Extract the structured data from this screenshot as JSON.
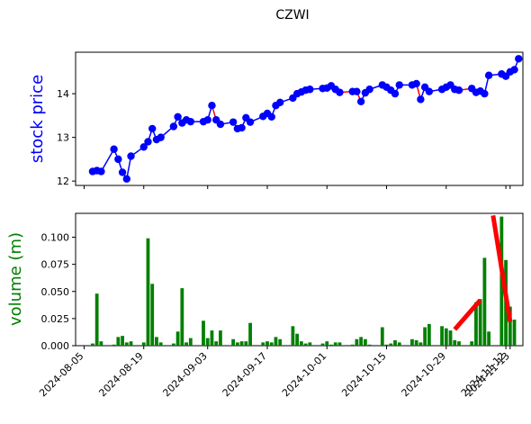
{
  "chart_data": [
    {
      "type": "line",
      "title": "CZWI",
      "xlabel": "",
      "ylabel": "stock price",
      "ylim": [
        11.9,
        14.95
      ],
      "yticks": [
        12,
        13,
        14
      ],
      "grid": false,
      "colors": {
        "line": "#0000ff",
        "marker": "#0000ff",
        "ylabel": "#0000ff",
        "decline": "#ff0000"
      },
      "x": [
        "2024-08-07",
        "2024-08-08",
        "2024-08-09",
        "2024-08-10",
        "2024-08-11",
        "2024-08-12",
        "2024-08-13",
        "2024-08-14",
        "2024-08-15",
        "2024-08-16",
        "2024-08-17",
        "2024-08-18",
        "2024-08-19",
        "2024-08-20",
        "2024-08-21",
        "2024-08-22",
        "2024-08-23",
        "2024-08-24",
        "2024-08-25",
        "2024-08-26",
        "2024-08-27",
        "2024-08-28",
        "2024-08-29",
        "2024-08-30",
        "2024-08-31",
        "2024-09-01",
        "2024-09-02",
        "2024-09-03",
        "2024-09-04",
        "2024-09-05",
        "2024-09-06",
        "2024-09-07",
        "2024-09-08",
        "2024-09-09",
        "2024-09-10",
        "2024-09-11",
        "2024-09-12",
        "2024-09-13",
        "2024-09-14",
        "2024-09-15",
        "2024-09-16",
        "2024-09-17",
        "2024-09-18",
        "2024-09-19",
        "2024-09-20",
        "2024-09-21",
        "2024-09-22",
        "2024-09-23",
        "2024-09-24",
        "2024-09-25",
        "2024-09-26",
        "2024-09-27",
        "2024-09-28",
        "2024-09-29",
        "2024-09-30",
        "2024-10-01",
        "2024-10-02",
        "2024-10-03",
        "2024-10-04",
        "2024-10-05",
        "2024-10-06",
        "2024-10-07",
        "2024-10-08",
        "2024-10-09",
        "2024-10-10",
        "2024-10-11",
        "2024-10-12",
        "2024-10-13",
        "2024-10-14",
        "2024-10-15",
        "2024-10-16",
        "2024-10-17",
        "2024-10-18",
        "2024-10-19",
        "2024-10-20",
        "2024-10-21",
        "2024-10-22",
        "2024-10-23",
        "2024-10-24",
        "2024-10-25",
        "2024-10-26",
        "2024-10-27",
        "2024-10-28",
        "2024-10-29",
        "2024-10-30",
        "2024-10-31",
        "2024-11-01",
        "2024-11-02",
        "2024-11-03",
        "2024-11-04",
        "2024-11-05",
        "2024-11-06",
        "2024-11-07",
        "2024-11-08",
        "2024-11-09",
        "2024-11-10",
        "2024-11-11",
        "2024-11-12",
        "2024-11-13",
        "2024-11-14"
      ],
      "price": [
        12.22,
        12.24,
        12.22,
        12.73,
        12.5,
        12.2,
        12.05,
        12.57,
        12.78,
        12.9,
        13.2,
        12.95,
        13.0,
        13.25,
        13.47,
        13.33,
        13.4,
        13.36,
        13.36,
        13.4,
        13.73,
        13.4,
        13.3,
        13.35,
        13.2,
        13.22,
        13.45,
        13.35,
        13.48,
        13.55,
        13.47,
        13.73,
        13.8,
        13.9,
        14.0,
        14.04,
        14.08,
        14.1,
        14.12,
        14.13,
        14.18,
        14.1,
        14.03,
        14.05,
        14.05,
        13.82,
        14.02,
        14.1,
        14.2,
        14.15,
        14.08,
        14.0,
        14.2,
        14.2,
        14.23,
        13.87,
        14.15,
        14.05,
        14.1,
        14.15,
        14.2,
        14.1,
        14.08,
        14.12,
        14.03,
        14.06,
        14.0,
        14.42,
        14.45,
        14.4,
        14.5,
        14.55,
        14.8
      ],
      "price_dates_index": [
        0,
        1,
        2,
        3,
        4,
        5,
        6,
        7,
        8,
        9,
        10,
        11,
        12,
        13,
        14,
        15,
        16,
        17,
        18,
        19,
        20,
        21,
        22,
        23,
        24,
        25,
        26,
        27,
        28,
        29,
        30,
        31,
        32,
        33,
        34,
        35,
        36,
        37,
        38,
        39,
        40,
        41,
        42,
        43,
        44,
        45,
        46,
        47,
        48,
        49,
        50,
        51,
        52,
        53,
        54,
        55,
        56,
        57,
        58,
        59,
        60,
        61,
        62,
        63,
        64,
        65,
        66,
        67,
        68,
        69,
        70,
        71,
        72
      ],
      "decline_segments": [
        [
          14,
          15
        ],
        [
          20,
          21
        ],
        [
          24,
          25
        ],
        [
          40,
          45
        ],
        [
          54,
          55
        ],
        [
          59,
          66
        ]
      ]
    },
    {
      "type": "bar",
      "xlabel": "",
      "ylabel": "volume (m)",
      "ylim": [
        0,
        0.122
      ],
      "yticks": [
        "0.000",
        "0.025",
        "0.050",
        "0.075",
        "0.100"
      ],
      "xticks": [
        "2024-08-05",
        "2024-08-19",
        "2024-09-03",
        "2024-09-17",
        "2024-10-01",
        "2024-10-15",
        "2024-10-29",
        "2024-11-12",
        "2024-11-13"
      ],
      "grid": false,
      "colors": {
        "bar": "#008000",
        "ylabel": "#008000",
        "trend": "#ff0000"
      },
      "values": [
        0.002,
        0.048,
        0.004,
        0.001,
        0.008,
        0.009,
        0.003,
        0.004,
        0.003,
        0.099,
        0.057,
        0.008,
        0.003,
        0.002,
        0.013,
        0.053,
        0.003,
        0.007,
        0.023,
        0.007,
        0.014,
        0.004,
        0.014,
        0.006,
        0.003,
        0.004,
        0.004,
        0.021,
        0.003,
        0.004,
        0.003,
        0.008,
        0.006,
        0.018,
        0.011,
        0.004,
        0.002,
        0.003,
        0.002,
        0.004,
        0.001,
        0.003,
        0.003,
        0.001,
        0.006,
        0.008,
        0.006,
        0.001,
        0.017,
        0.001,
        0.002,
        0.005,
        0.003,
        0.006,
        0.005,
        0.003,
        0.017,
        0.02,
        0.018,
        0.016,
        0.014,
        0.005,
        0.004,
        0.004,
        0.04,
        0.043,
        0.081,
        0.013,
        0.119,
        0.079,
        0.036,
        0.024
      ],
      "trend_lines": [
        {
          "from": [
            "2024-10-31",
            0.015
          ],
          "to": [
            "2024-11-06",
            0.042
          ]
        },
        {
          "from": [
            "2024-11-09",
            0.12
          ],
          "to": [
            "2024-11-13",
            0.022
          ]
        }
      ]
    }
  ]
}
